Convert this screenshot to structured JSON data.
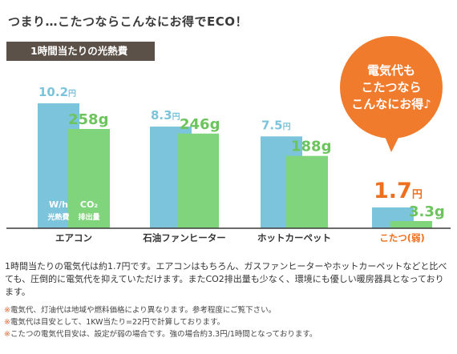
{
  "headline": "つまり…こたつならこんなにお得でECO！",
  "subtitle": "1時間当たりの光熱費",
  "callout": {
    "lines": [
      "電気代も",
      "こたつなら",
      "こんなにお得♪"
    ],
    "color": "#f07b2d"
  },
  "colors": {
    "cost_bar": "#7cc4dc",
    "co2_bar": "#80d47c",
    "cost_label": "#7cc4dc",
    "co2_label": "#6cc45c",
    "highlight_label": "#ee6f1e",
    "axis": "#3a3a3a"
  },
  "bar_inner_labels": {
    "cost_main": "W/h",
    "cost_sub": "光熱費",
    "co2_main": "CO₂",
    "co2_sub": "排出量"
  },
  "chart_data": {
    "type": "bar",
    "categories": [
      "エアコン",
      "石油ファンヒーター",
      "ホットカーペット",
      "こたつ(弱)"
    ],
    "highlight_category": "こたつ(弱)",
    "series": [
      {
        "key": "cost",
        "values": [
          10.2,
          8.3,
          7.5,
          1.7
        ],
        "value_labels": [
          "10.2",
          "8.3",
          "7.5",
          "1.7"
        ],
        "unit": "円"
      },
      {
        "key": "co2",
        "values": [
          258,
          246,
          188,
          3.3
        ],
        "value_labels": [
          "258",
          "246",
          "188",
          "3.3"
        ],
        "unit": "g"
      }
    ]
  },
  "description": "1時間当たりの電気代は約1.7円です。エアコンはもちろん、ガスファンヒーターやホットカーペットなどと比べても、圧倒的に電気代を抑えていただけます。またCO2排出量も少なく、環境にも優しい暖房器具となっております。",
  "notes": [
    "電気代、灯油代は地域や燃料価格により異なります。参考程度にご覧下さい。",
    "電気代は目安として、1KW当たり=22円で計算しております。",
    "こたつの電気代目安は、設定が弱の場合です。強の場合約3.3円/1時間となっております。"
  ],
  "note_mark": "※"
}
